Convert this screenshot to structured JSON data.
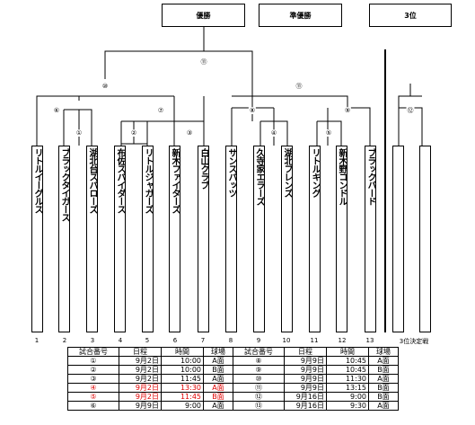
{
  "headers": {
    "winner": "優勝",
    "runnerup": "準優勝",
    "third": "3位"
  },
  "match_labels": [
    "⑪",
    "⑩",
    "⑪",
    "⑥",
    "①",
    "②",
    "⑦",
    "③",
    "⑧",
    "④",
    "⑤",
    "⑨",
    "⑫"
  ],
  "teams": [
    {
      "num": "1",
      "name": "リトルイーグルス"
    },
    {
      "num": "2",
      "name": "ブラックタイガース"
    },
    {
      "num": "3",
      "name": "湖北台スパローズ"
    },
    {
      "num": "4",
      "name": "布佐スパイダース"
    },
    {
      "num": "5",
      "name": "リトルジャガーズ"
    },
    {
      "num": "6",
      "name": "新木ファイターズ"
    },
    {
      "num": "7",
      "name": "白山クラブ"
    },
    {
      "num": "8",
      "name": "サンスパッツ"
    },
    {
      "num": "9",
      "name": "久寺家エラーズ"
    },
    {
      "num": "10",
      "name": "湖北フレンズ"
    },
    {
      "num": "11",
      "name": "リトルキング"
    },
    {
      "num": "12",
      "name": "新木野コンドル"
    },
    {
      "num": "13",
      "name": "ブラックバード"
    }
  ],
  "third_place_label": "3位決定戦",
  "schedule": {
    "headers": [
      "試合番号",
      "日程",
      "時間",
      "球場",
      "試合番号",
      "日程",
      "時間",
      "球場"
    ],
    "rows": [
      [
        "①",
        "9月2日",
        "10:00",
        "A面",
        "⑧",
        "9月9日",
        "10:45",
        "A面"
      ],
      [
        "②",
        "9月2日",
        "10:00",
        "B面",
        "⑨",
        "9月9日",
        "10:45",
        "B面"
      ],
      [
        "③",
        "9月2日",
        "11:45",
        "A面",
        "⑩",
        "9月9日",
        "11:30",
        "A面"
      ],
      [
        "④",
        "9月2日",
        "13:30",
        "A面",
        "⑪",
        "9月9日",
        "13:15",
        "B面"
      ],
      [
        "⑤",
        "9月2日",
        "11:45",
        "B面",
        "⑫",
        "9月16日",
        "9:00",
        "B面"
      ],
      [
        "⑥",
        "9月9日",
        "9:00",
        "A面",
        "⑬",
        "9月16日",
        "9:30",
        "A面"
      ]
    ],
    "red_rows": [
      3,
      4
    ]
  }
}
